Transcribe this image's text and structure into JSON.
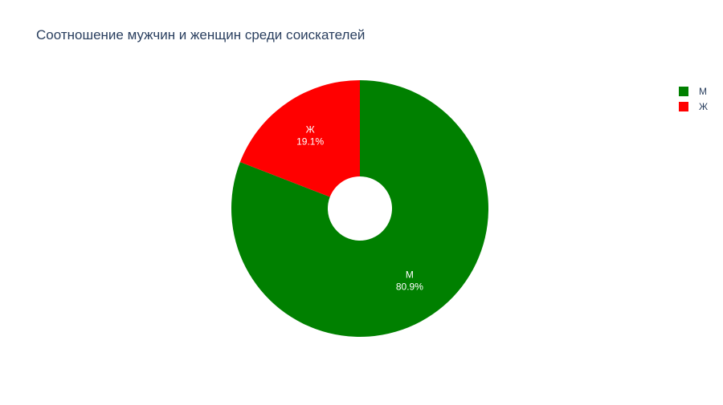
{
  "chart_data": {
    "type": "pie",
    "title": "Соотношение мужчин и женщин среди соискателей",
    "hole": 0.25,
    "labels": [
      "М",
      "Ж"
    ],
    "values": [
      80.9,
      19.1
    ],
    "percent_labels": [
      "80.9%",
      "19.1%"
    ],
    "colors": [
      "#008000",
      "#ff0000"
    ],
    "legend": {
      "position": "top-right",
      "items": [
        {
          "label": "М",
          "color": "#008000"
        },
        {
          "label": "Ж",
          "color": "#ff0000"
        }
      ]
    }
  }
}
